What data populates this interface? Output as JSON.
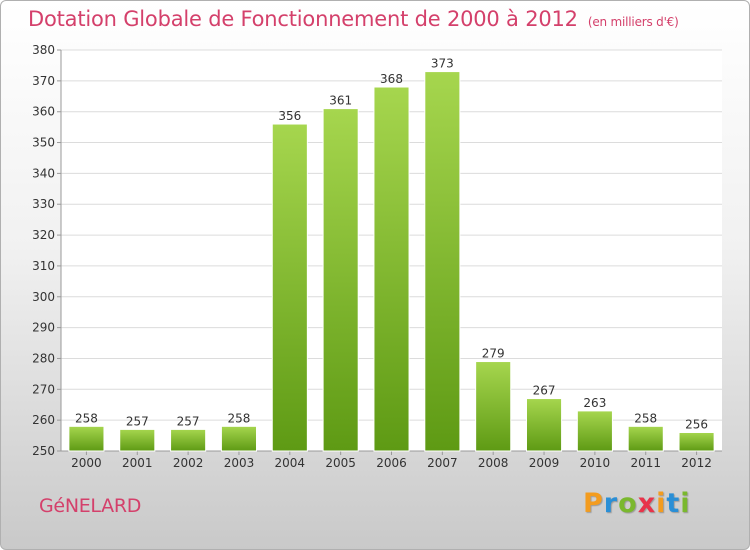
{
  "header": {
    "title": "Dotation Globale de Fonctionnement de 2000 à 2012",
    "unit": "(en milliers d'€)"
  },
  "footer": {
    "commune": "GéNELARD",
    "logo_letters": [
      "P",
      "r",
      "o",
      "x",
      "i",
      "t",
      "i"
    ],
    "logo_colors": [
      "#f39c1f",
      "#2a8fd6",
      "#7ab82e",
      "#e8334a",
      "#f39c1f",
      "#2a8fd6",
      "#7ab82e"
    ]
  },
  "colors": {
    "bar_light": "#a6d64e",
    "bar_dark": "#5e9a14",
    "title": "#d4406b"
  },
  "chart_data": {
    "type": "bar",
    "categories": [
      "2000",
      "2001",
      "2002",
      "2003",
      "2004",
      "2005",
      "2006",
      "2007",
      "2008",
      "2009",
      "2010",
      "2011",
      "2012"
    ],
    "values": [
      258,
      257,
      257,
      258,
      356,
      361,
      368,
      373,
      279,
      267,
      263,
      258,
      256
    ],
    "title": "Dotation Globale de Fonctionnement de 2000 à 2012",
    "subtitle": "(en milliers d'€)",
    "xlabel": "",
    "ylabel": "",
    "ylim": [
      250,
      380
    ],
    "yticks": [
      250,
      260,
      270,
      280,
      290,
      300,
      310,
      320,
      330,
      340,
      350,
      360,
      370,
      380
    ],
    "grid": true,
    "legend": "none"
  }
}
